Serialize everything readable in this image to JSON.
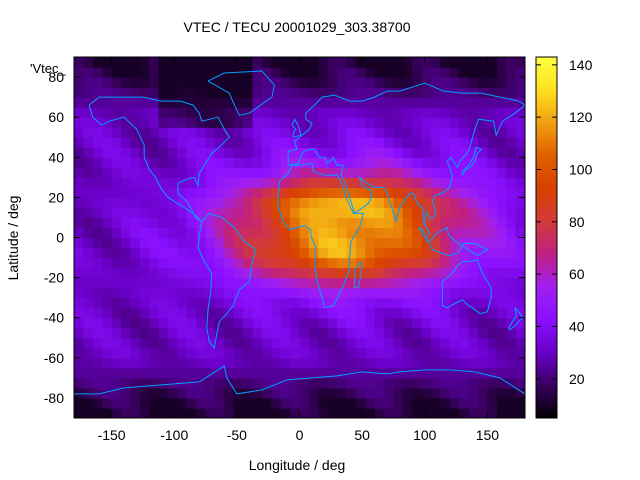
{
  "chart_data": {
    "type": "heatmap",
    "title": "VTEC / TECU 20001029_303.38700",
    "xlabel": "Longitude / deg",
    "ylabel": "Latitude / deg",
    "xlim": [
      -180,
      180
    ],
    "ylim": [
      -90,
      90
    ],
    "zlim": [
      5,
      143
    ],
    "xticks": [
      -150,
      -100,
      -50,
      0,
      50,
      100,
      150
    ],
    "yticks": [
      -80,
      -60,
      -40,
      -20,
      0,
      20,
      40,
      60,
      80
    ],
    "colorbar_ticks": [
      20,
      40,
      60,
      80,
      100,
      120,
      140
    ],
    "series_label": "'Vtec_",
    "colormap": [
      "#000000",
      "#3a0060",
      "#6a00c8",
      "#8a10ff",
      "#a020f0",
      "#c02080",
      "#d23a3a",
      "#d84000",
      "#e06000",
      "#f0a010",
      "#ffe020",
      "#ffff40"
    ],
    "coastline_color": "#00a0ff",
    "grid": false,
    "legend": "top-left",
    "field_model": {
      "base_level_tecu": 30,
      "equatorial_anomaly_peak_tecu": 130,
      "subsolar_region_lon_range": [
        -60,
        140
      ],
      "high_latitude_level_tecu": 10
    }
  }
}
